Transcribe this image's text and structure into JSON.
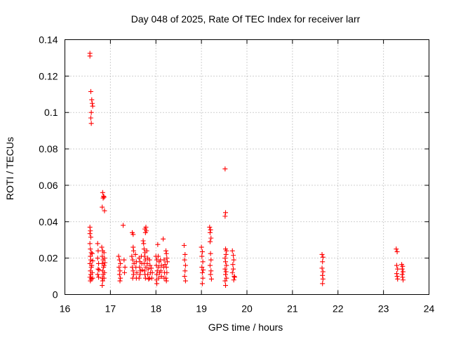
{
  "chart_data": {
    "type": "scatter",
    "title": "Day 048 of 2025, Rate Of TEC Index for receiver larr",
    "xlabel": "GPS time / hours",
    "ylabel": "ROTI / TECUs",
    "xlim": [
      16,
      24
    ],
    "ylim": [
      0,
      0.14
    ],
    "x_ticks": [
      16,
      17,
      18,
      19,
      20,
      21,
      22,
      23,
      24
    ],
    "x_tick_labels": [
      "16",
      "17",
      "18",
      "19",
      "20",
      "21",
      "22",
      "23",
      "24"
    ],
    "y_ticks": [
      0,
      0.02,
      0.04,
      0.06,
      0.08,
      0.1,
      0.12,
      0.14
    ],
    "y_tick_labels": [
      "0",
      "0.02",
      "0.04",
      "0.06",
      "0.08",
      "0.1",
      "0.12",
      "0.14"
    ],
    "grid": true,
    "marker": "plus",
    "color": "#ff0000",
    "series": [
      {
        "name": "ROTI",
        "points": [
          [
            16.55,
            0.1325
          ],
          [
            16.55,
            0.131
          ],
          [
            16.57,
            0.1115
          ],
          [
            16.59,
            0.107
          ],
          [
            16.6,
            0.105
          ],
          [
            16.61,
            0.1035
          ],
          [
            16.58,
            0.1
          ],
          [
            16.57,
            0.097
          ],
          [
            16.58,
            0.094
          ],
          [
            16.55,
            0.037
          ],
          [
            16.56,
            0.035
          ],
          [
            16.55,
            0.0335
          ],
          [
            16.57,
            0.0315
          ],
          [
            16.55,
            0.028
          ],
          [
            16.56,
            0.025
          ],
          [
            16.58,
            0.023
          ],
          [
            16.56,
            0.021
          ],
          [
            16.57,
            0.019
          ],
          [
            16.55,
            0.017
          ],
          [
            16.58,
            0.015
          ],
          [
            16.56,
            0.013
          ],
          [
            16.57,
            0.011
          ],
          [
            16.55,
            0.0095
          ],
          [
            16.58,
            0.0085
          ],
          [
            16.56,
            0.0075
          ],
          [
            16.59,
            0.016
          ],
          [
            16.6,
            0.0225
          ],
          [
            16.6,
            0.012
          ],
          [
            16.61,
            0.0185
          ],
          [
            16.61,
            0.009
          ],
          [
            16.72,
            0.028
          ],
          [
            16.73,
            0.024
          ],
          [
            16.72,
            0.02
          ],
          [
            16.74,
            0.017
          ],
          [
            16.73,
            0.014
          ],
          [
            16.72,
            0.011
          ],
          [
            16.74,
            0.0095
          ],
          [
            16.75,
            0.0135
          ],
          [
            16.83,
            0.056
          ],
          [
            16.85,
            0.054
          ],
          [
            16.84,
            0.053
          ],
          [
            16.86,
            0.0535
          ],
          [
            16.82,
            0.048
          ],
          [
            16.87,
            0.046
          ],
          [
            16.81,
            0.026
          ],
          [
            16.83,
            0.024
          ],
          [
            16.82,
            0.021
          ],
          [
            16.84,
            0.019
          ],
          [
            16.82,
            0.017
          ],
          [
            16.85,
            0.015
          ],
          [
            16.83,
            0.013
          ],
          [
            16.84,
            0.011
          ],
          [
            16.82,
            0.009
          ],
          [
            16.83,
            0.0075
          ],
          [
            16.82,
            0.005
          ],
          [
            16.86,
            0.023
          ],
          [
            16.87,
            0.02
          ],
          [
            16.86,
            0.016
          ],
          [
            16.87,
            0.012
          ],
          [
            16.86,
            0.009
          ],
          [
            16.88,
            0.0175
          ],
          [
            17.28,
            0.038
          ],
          [
            17.18,
            0.021
          ],
          [
            17.2,
            0.019
          ],
          [
            17.22,
            0.017
          ],
          [
            17.19,
            0.015
          ],
          [
            17.21,
            0.013
          ],
          [
            17.2,
            0.011
          ],
          [
            17.22,
            0.009
          ],
          [
            17.21,
            0.0075
          ],
          [
            17.3,
            0.019
          ],
          [
            17.32,
            0.015
          ],
          [
            17.31,
            0.012
          ],
          [
            17.48,
            0.034
          ],
          [
            17.5,
            0.033
          ],
          [
            17.5,
            0.026
          ],
          [
            17.51,
            0.024
          ],
          [
            17.47,
            0.021
          ],
          [
            17.49,
            0.019
          ],
          [
            17.52,
            0.017
          ],
          [
            17.48,
            0.015
          ],
          [
            17.5,
            0.013
          ],
          [
            17.51,
            0.011
          ],
          [
            17.49,
            0.009
          ],
          [
            17.55,
            0.022
          ],
          [
            17.57,
            0.018
          ],
          [
            17.56,
            0.015
          ],
          [
            17.58,
            0.012
          ],
          [
            17.57,
            0.009
          ],
          [
            17.63,
            0.02
          ],
          [
            17.65,
            0.018
          ],
          [
            17.64,
            0.015
          ],
          [
            17.66,
            0.013
          ],
          [
            17.65,
            0.011
          ],
          [
            17.63,
            0.009
          ],
          [
            17.68,
            0.021
          ],
          [
            17.69,
            0.017
          ],
          [
            17.7,
            0.0135
          ],
          [
            17.72,
            0.0295
          ],
          [
            17.73,
            0.028
          ],
          [
            17.76,
            0.036
          ],
          [
            17.78,
            0.037
          ],
          [
            17.79,
            0.035
          ],
          [
            17.77,
            0.034
          ],
          [
            17.74,
            0.025
          ],
          [
            17.76,
            0.023
          ],
          [
            17.75,
            0.021
          ],
          [
            17.77,
            0.019
          ],
          [
            17.74,
            0.017
          ],
          [
            17.78,
            0.015
          ],
          [
            17.75,
            0.013
          ],
          [
            17.76,
            0.011
          ],
          [
            17.77,
            0.009
          ],
          [
            17.8,
            0.024
          ],
          [
            17.82,
            0.02
          ],
          [
            17.81,
            0.017
          ],
          [
            17.83,
            0.014
          ],
          [
            17.82,
            0.011
          ],
          [
            17.84,
            0.0085
          ],
          [
            17.86,
            0.019
          ],
          [
            17.87,
            0.016
          ],
          [
            17.88,
            0.012
          ],
          [
            17.86,
            0.009
          ],
          [
            17.9,
            0.0145
          ],
          [
            17.92,
            0.012
          ],
          [
            17.91,
            0.009
          ],
          [
            18.0,
            0.021
          ],
          [
            18.02,
            0.019
          ],
          [
            18.01,
            0.016
          ],
          [
            18.03,
            0.013
          ],
          [
            18.02,
            0.011
          ],
          [
            18.01,
            0.008
          ],
          [
            18.02,
            0.006
          ],
          [
            18.05,
            0.021
          ],
          [
            18.07,
            0.018
          ],
          [
            18.06,
            0.015
          ],
          [
            18.08,
            0.012
          ],
          [
            18.06,
            0.009
          ],
          [
            18.1,
            0.019
          ],
          [
            18.12,
            0.016
          ],
          [
            18.11,
            0.013
          ],
          [
            18.12,
            0.01
          ],
          [
            18.04,
            0.0275
          ],
          [
            18.16,
            0.0305
          ],
          [
            18.18,
            0.019
          ],
          [
            18.17,
            0.015
          ],
          [
            18.19,
            0.012
          ],
          [
            18.18,
            0.009
          ],
          [
            18.2,
            0.0165
          ],
          [
            18.22,
            0.024
          ],
          [
            18.23,
            0.0225
          ],
          [
            18.24,
            0.02
          ],
          [
            18.25,
            0.018
          ],
          [
            18.23,
            0.015
          ],
          [
            18.24,
            0.012
          ],
          [
            18.22,
            0.009
          ],
          [
            18.23,
            0.0075
          ],
          [
            18.62,
            0.027
          ],
          [
            18.64,
            0.022
          ],
          [
            18.63,
            0.019
          ],
          [
            18.65,
            0.016
          ],
          [
            18.64,
            0.013
          ],
          [
            18.63,
            0.01
          ],
          [
            18.65,
            0.0075
          ],
          [
            19.0,
            0.026
          ],
          [
            19.02,
            0.0235
          ],
          [
            19.01,
            0.021
          ],
          [
            19.03,
            0.018
          ],
          [
            19.01,
            0.015
          ],
          [
            19.02,
            0.012
          ],
          [
            19.03,
            0.009
          ],
          [
            19.02,
            0.006
          ],
          [
            19.04,
            0.0135
          ],
          [
            19.18,
            0.037
          ],
          [
            19.2,
            0.0355
          ],
          [
            19.19,
            0.034
          ],
          [
            19.21,
            0.031
          ],
          [
            19.19,
            0.029
          ],
          [
            19.2,
            0.0225
          ],
          [
            19.21,
            0.019
          ],
          [
            19.19,
            0.016
          ],
          [
            19.21,
            0.013
          ],
          [
            19.2,
            0.011
          ],
          [
            19.22,
            0.0085
          ],
          [
            19.52,
            0.069
          ],
          [
            19.53,
            0.045
          ],
          [
            19.52,
            0.043
          ],
          [
            19.53,
            0.025
          ],
          [
            19.55,
            0.024
          ],
          [
            19.54,
            0.022
          ],
          [
            19.52,
            0.02
          ],
          [
            19.53,
            0.018
          ],
          [
            19.55,
            0.016
          ],
          [
            19.52,
            0.014
          ],
          [
            19.54,
            0.0125
          ],
          [
            19.53,
            0.011
          ],
          [
            19.55,
            0.009
          ],
          [
            19.52,
            0.0075
          ],
          [
            19.53,
            0.005
          ],
          [
            19.68,
            0.024
          ],
          [
            19.7,
            0.0215
          ],
          [
            19.71,
            0.019
          ],
          [
            19.69,
            0.0165
          ],
          [
            19.7,
            0.014
          ],
          [
            19.68,
            0.012
          ],
          [
            19.72,
            0.01
          ],
          [
            19.71,
            0.008
          ],
          [
            19.73,
            0.0095
          ],
          [
            21.65,
            0.022
          ],
          [
            21.67,
            0.0205
          ],
          [
            21.66,
            0.018
          ],
          [
            21.65,
            0.0145
          ],
          [
            21.67,
            0.0125
          ],
          [
            21.66,
            0.0105
          ],
          [
            21.67,
            0.0085
          ],
          [
            21.66,
            0.006
          ],
          [
            23.28,
            0.025
          ],
          [
            23.3,
            0.0235
          ],
          [
            23.29,
            0.016
          ],
          [
            23.31,
            0.014
          ],
          [
            23.29,
            0.0115
          ],
          [
            23.3,
            0.01
          ],
          [
            23.31,
            0.0085
          ],
          [
            23.4,
            0.0165
          ],
          [
            23.42,
            0.0155
          ],
          [
            23.41,
            0.014
          ],
          [
            23.43,
            0.0125
          ],
          [
            23.41,
            0.011
          ],
          [
            23.42,
            0.0095
          ],
          [
            23.43,
            0.008
          ]
        ]
      }
    ]
  }
}
